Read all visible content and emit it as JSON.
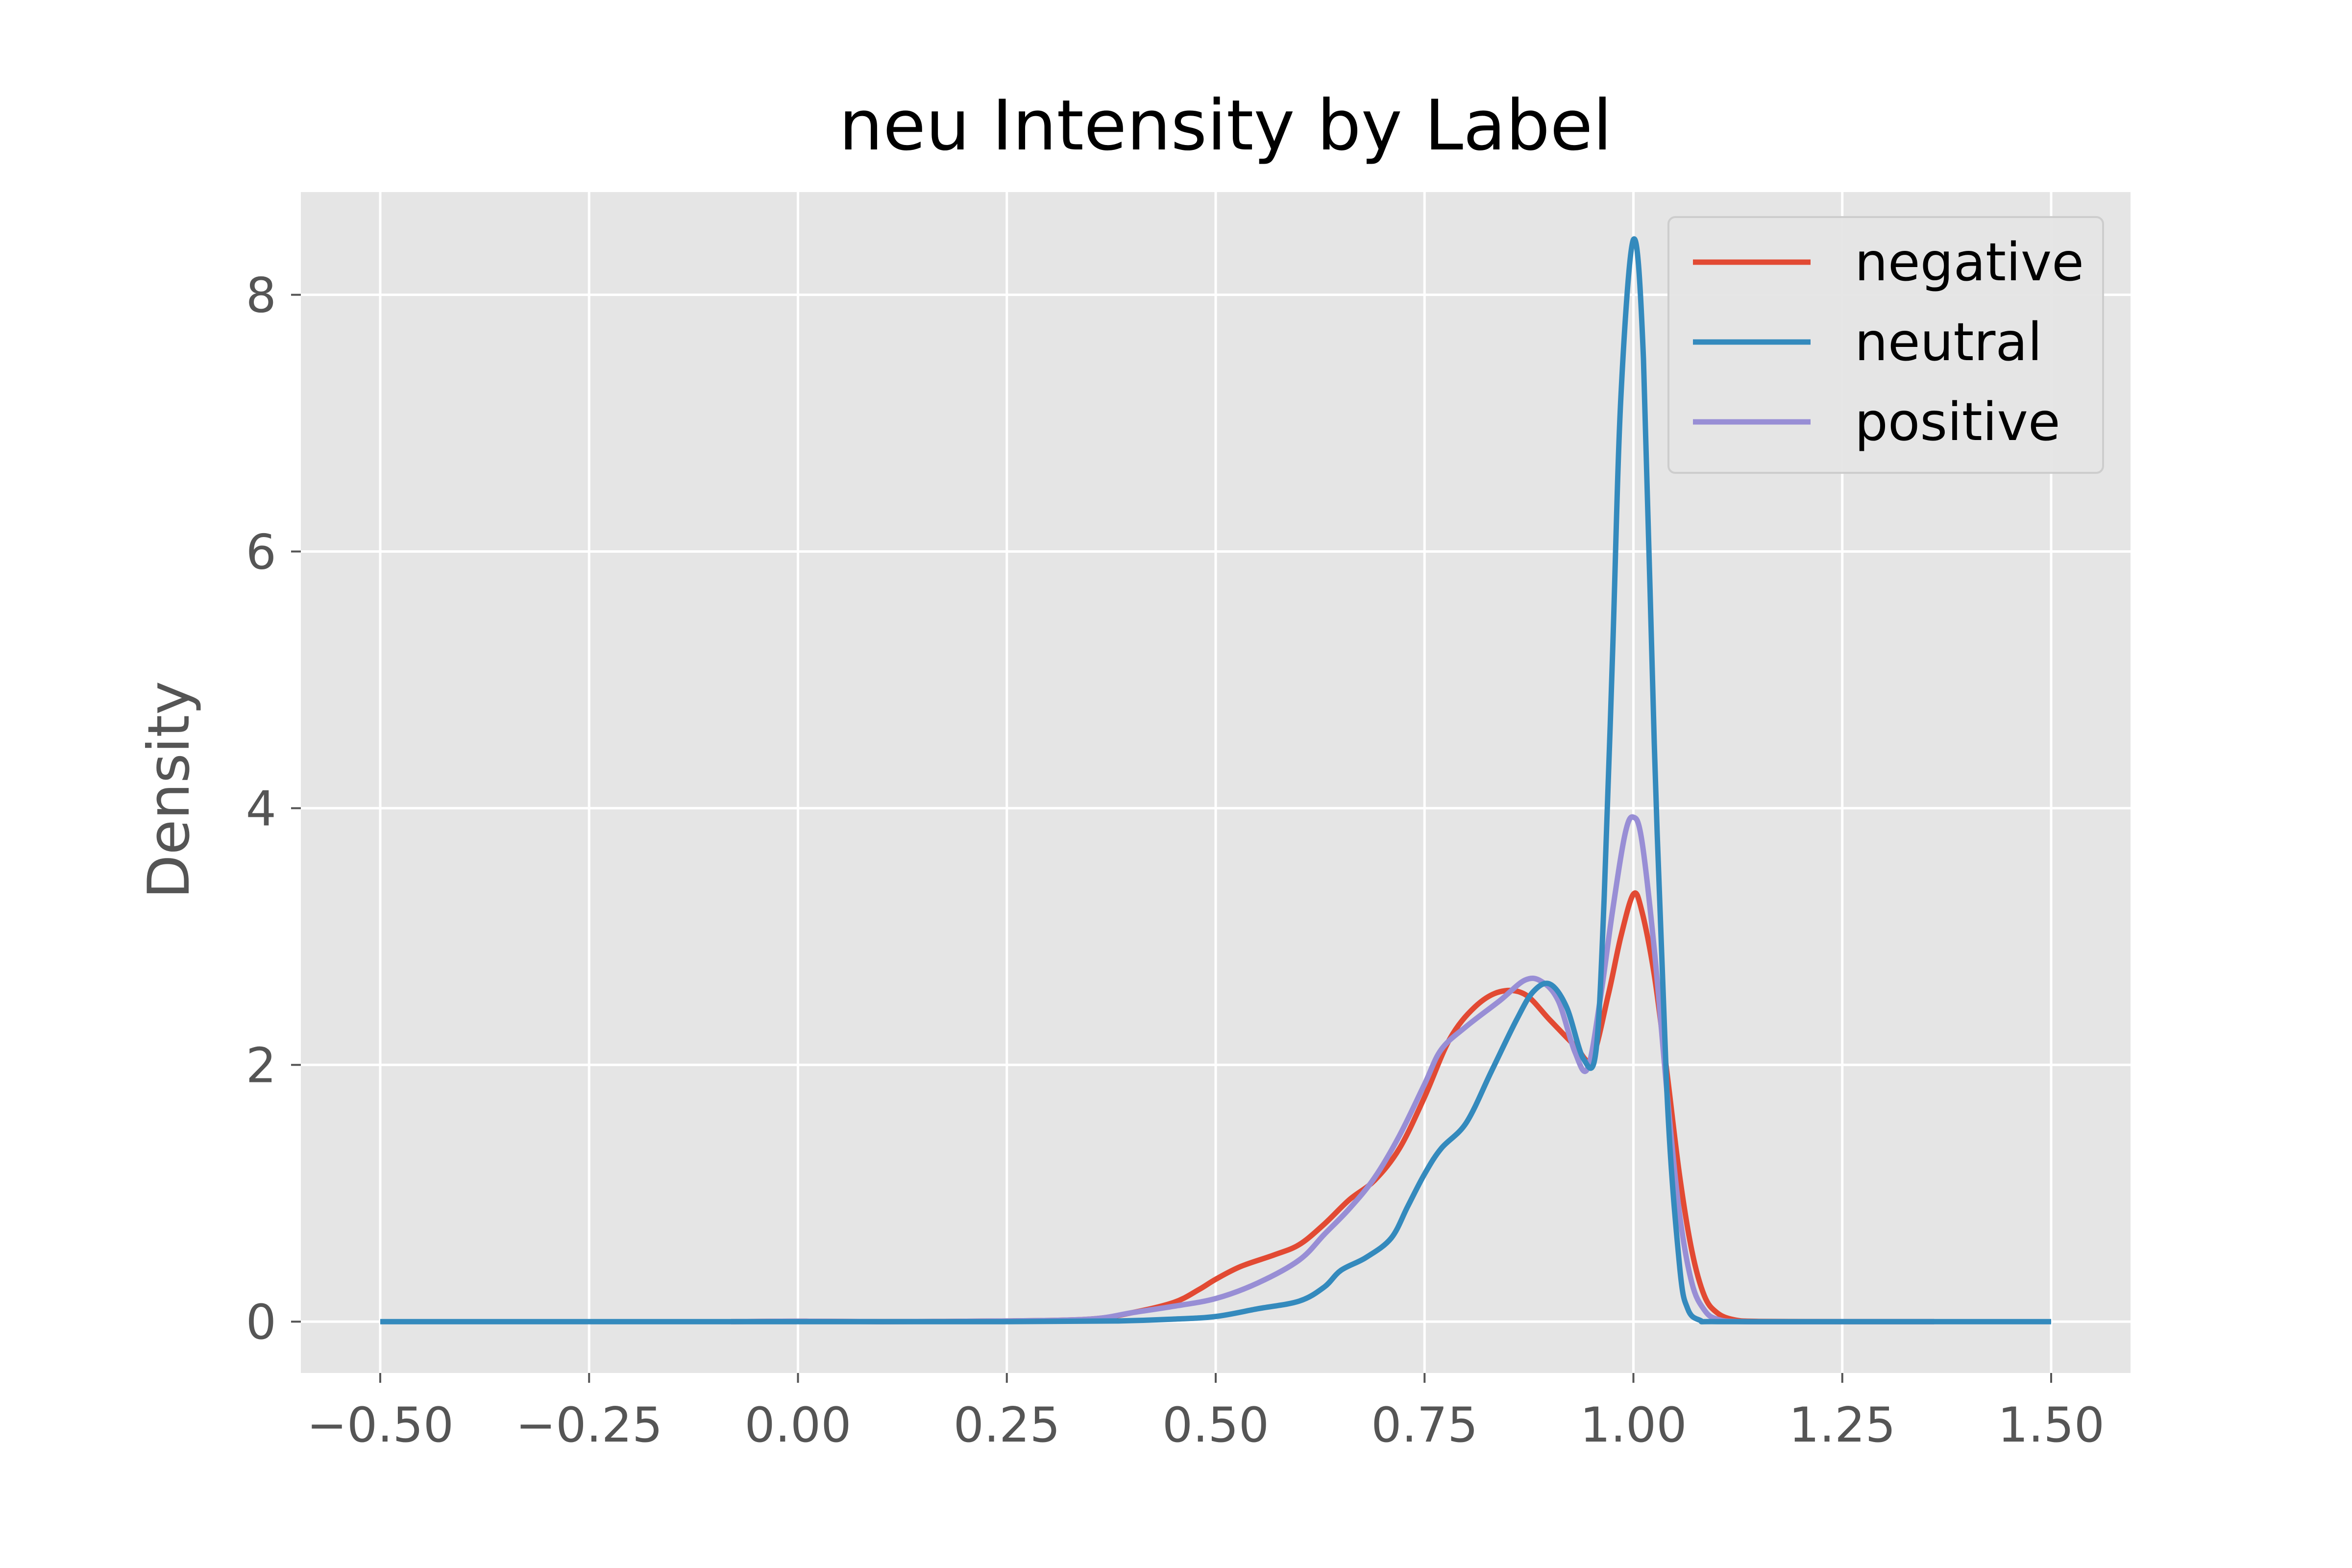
{
  "chart_data": {
    "type": "line",
    "title": "neu Intensity by Label",
    "xlabel": "",
    "ylabel": "Density",
    "xlim": [
      -0.595,
      1.595
    ],
    "ylim": [
      -0.4,
      8.8
    ],
    "xticks": [
      -0.5,
      -0.25,
      0.0,
      0.25,
      0.5,
      0.75,
      1.0,
      1.25,
      1.5
    ],
    "xtick_labels": [
      "−0.50",
      "−0.25",
      "0.00",
      "0.25",
      "0.50",
      "0.75",
      "1.00",
      "1.25",
      "1.50"
    ],
    "yticks": [
      0,
      2,
      4,
      6,
      8
    ],
    "ytick_labels": [
      "0",
      "2",
      "4",
      "6",
      "8"
    ],
    "grid": true,
    "legend_position": "top-right",
    "series": [
      {
        "name": "negative",
        "color": "#E24A33",
        "points": [
          [
            -0.08,
            0
          ],
          [
            0.0,
            0.003
          ],
          [
            0.1,
            0
          ],
          [
            0.25,
            0.005
          ],
          [
            0.35,
            0.02
          ],
          [
            0.4,
            0.07
          ],
          [
            0.45,
            0.15
          ],
          [
            0.48,
            0.25
          ],
          [
            0.5,
            0.33
          ],
          [
            0.53,
            0.43
          ],
          [
            0.57,
            0.52
          ],
          [
            0.6,
            0.6
          ],
          [
            0.63,
            0.76
          ],
          [
            0.66,
            0.95
          ],
          [
            0.69,
            1.1
          ],
          [
            0.72,
            1.35
          ],
          [
            0.75,
            1.75
          ],
          [
            0.78,
            2.2
          ],
          [
            0.81,
            2.45
          ],
          [
            0.84,
            2.57
          ],
          [
            0.87,
            2.55
          ],
          [
            0.9,
            2.35
          ],
          [
            0.93,
            2.15
          ],
          [
            0.95,
            2.05
          ],
          [
            0.97,
            2.55
          ],
          [
            0.985,
            3.0
          ],
          [
            1.0,
            3.33
          ],
          [
            1.01,
            3.2
          ],
          [
            1.025,
            2.7
          ],
          [
            1.04,
            1.95
          ],
          [
            1.055,
            1.15
          ],
          [
            1.07,
            0.55
          ],
          [
            1.085,
            0.2
          ],
          [
            1.1,
            0.07
          ],
          [
            1.12,
            0.015
          ],
          [
            1.15,
            0.002
          ],
          [
            1.25,
            0
          ],
          [
            1.36,
            0
          ]
        ]
      },
      {
        "name": "neutral",
        "color": "#348ABD",
        "points": [
          [
            -0.5,
            0
          ],
          [
            -0.25,
            0
          ],
          [
            0.0,
            0
          ],
          [
            0.25,
            0
          ],
          [
            0.38,
            0.005
          ],
          [
            0.45,
            0.02
          ],
          [
            0.5,
            0.04
          ],
          [
            0.55,
            0.1
          ],
          [
            0.6,
            0.16
          ],
          [
            0.63,
            0.27
          ],
          [
            0.65,
            0.4
          ],
          [
            0.68,
            0.5
          ],
          [
            0.71,
            0.65
          ],
          [
            0.73,
            0.9
          ],
          [
            0.75,
            1.15
          ],
          [
            0.77,
            1.35
          ],
          [
            0.8,
            1.55
          ],
          [
            0.83,
            1.95
          ],
          [
            0.86,
            2.35
          ],
          [
            0.88,
            2.57
          ],
          [
            0.9,
            2.63
          ],
          [
            0.92,
            2.45
          ],
          [
            0.94,
            2.05
          ],
          [
            0.955,
            2.1
          ],
          [
            0.965,
            3.3
          ],
          [
            0.975,
            5.2
          ],
          [
            0.985,
            7.2
          ],
          [
            1.0,
            8.43
          ],
          [
            1.012,
            7.5
          ],
          [
            1.025,
            4.5
          ],
          [
            1.04,
            1.8
          ],
          [
            1.055,
            0.45
          ],
          [
            1.065,
            0.1
          ],
          [
            1.08,
            0.01
          ],
          [
            1.1,
            0
          ],
          [
            1.25,
            0
          ],
          [
            1.5,
            0
          ]
        ]
      },
      {
        "name": "positive",
        "color": "#988ED5",
        "points": [
          [
            -0.08,
            0
          ],
          [
            0.0,
            0.003
          ],
          [
            0.1,
            0
          ],
          [
            0.25,
            0.005
          ],
          [
            0.35,
            0.02
          ],
          [
            0.4,
            0.07
          ],
          [
            0.45,
            0.12
          ],
          [
            0.5,
            0.18
          ],
          [
            0.55,
            0.3
          ],
          [
            0.6,
            0.48
          ],
          [
            0.63,
            0.68
          ],
          [
            0.66,
            0.88
          ],
          [
            0.69,
            1.12
          ],
          [
            0.72,
            1.45
          ],
          [
            0.75,
            1.85
          ],
          [
            0.77,
            2.12
          ],
          [
            0.8,
            2.3
          ],
          [
            0.84,
            2.5
          ],
          [
            0.87,
            2.66
          ],
          [
            0.89,
            2.65
          ],
          [
            0.91,
            2.5
          ],
          [
            0.93,
            2.1
          ],
          [
            0.945,
            1.97
          ],
          [
            0.96,
            2.5
          ],
          [
            0.975,
            3.2
          ],
          [
            0.99,
            3.8
          ],
          [
            1.0,
            3.93
          ],
          [
            1.01,
            3.75
          ],
          [
            1.025,
            2.9
          ],
          [
            1.04,
            1.8
          ],
          [
            1.055,
            0.85
          ],
          [
            1.07,
            0.3
          ],
          [
            1.085,
            0.09
          ],
          [
            1.1,
            0.02
          ],
          [
            1.13,
            0
          ],
          [
            1.25,
            0
          ],
          [
            1.36,
            0
          ]
        ]
      }
    ]
  }
}
